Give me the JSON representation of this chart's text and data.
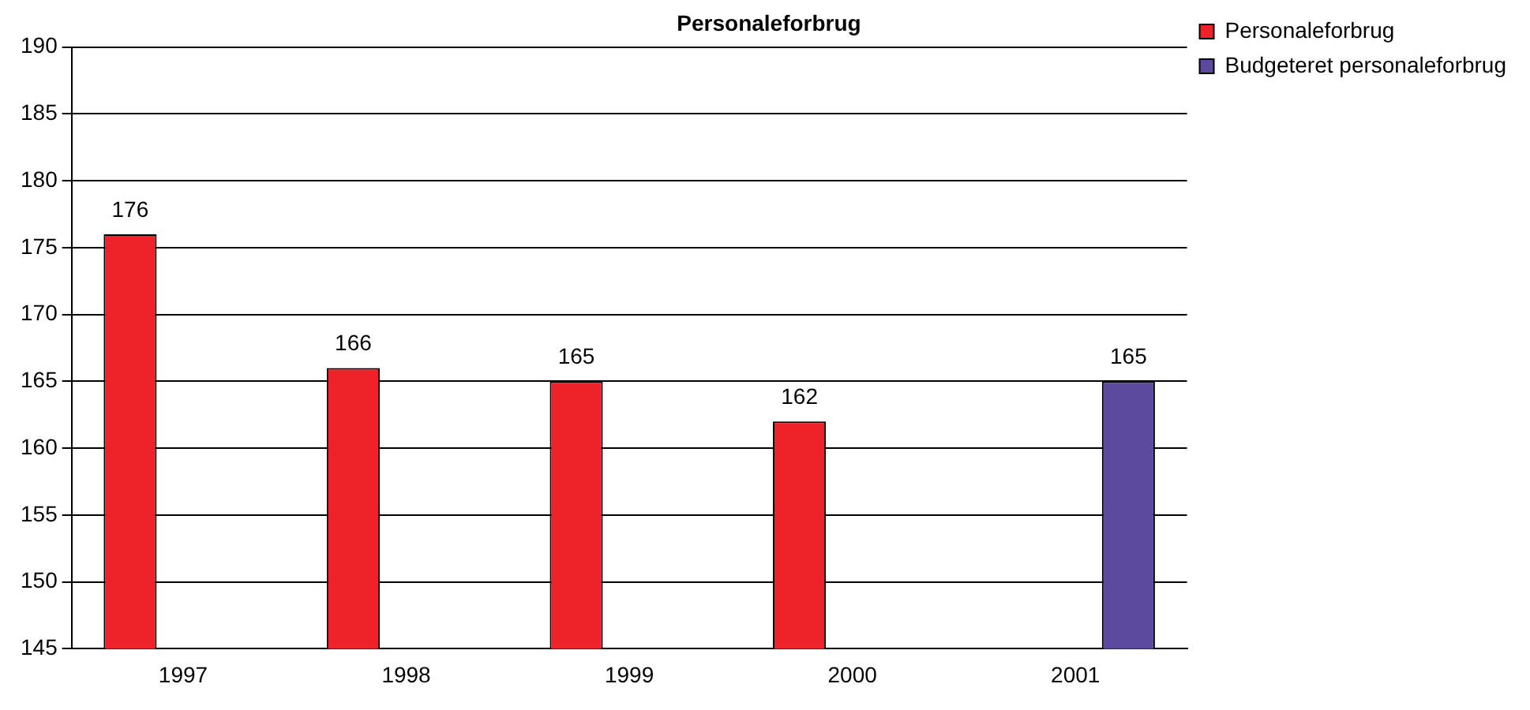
{
  "chart_data": {
    "type": "bar",
    "title": "Personaleforbrug",
    "categories": [
      "1997",
      "1998",
      "1999",
      "2000",
      "2001"
    ],
    "series": [
      {
        "name": "Personaleforbrug",
        "color": "#ee2229",
        "values": [
          176,
          166,
          165,
          162,
          null
        ]
      },
      {
        "name": "Budgeteret personaleforbrug",
        "color": "#5b4a9e",
        "values": [
          null,
          null,
          null,
          null,
          165
        ]
      }
    ],
    "ylim": [
      145,
      190
    ],
    "yticks": [
      145,
      150,
      155,
      160,
      165,
      170,
      175,
      180,
      185,
      190
    ],
    "grid": "y",
    "legend": "top right",
    "data_labels": true
  }
}
